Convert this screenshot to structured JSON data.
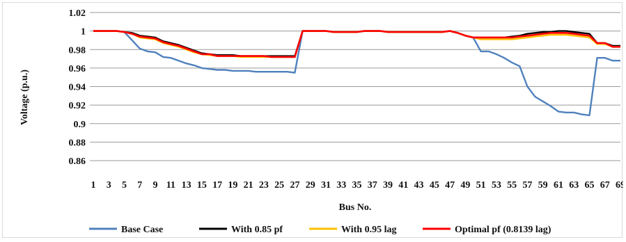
{
  "chart_data": {
    "type": "line",
    "title": "",
    "xlabel": "Bus No.",
    "ylabel": "Voltage (p.u.)",
    "ylim": [
      0.86,
      1.02
    ],
    "yticks": [
      0.86,
      0.88,
      0.9,
      0.92,
      0.94,
      0.96,
      0.98,
      1,
      1.02
    ],
    "ytick_labels": [
      "0.86",
      "0.88",
      "0.9",
      "0.92",
      "0.94",
      "0.96",
      "0.98",
      "1",
      "1.02"
    ],
    "x": [
      1,
      2,
      3,
      4,
      5,
      6,
      7,
      8,
      9,
      10,
      11,
      12,
      13,
      14,
      15,
      16,
      17,
      18,
      19,
      20,
      21,
      22,
      23,
      24,
      25,
      26,
      27,
      28,
      29,
      30,
      31,
      32,
      33,
      34,
      35,
      36,
      37,
      38,
      39,
      40,
      41,
      42,
      43,
      44,
      45,
      46,
      47,
      48,
      49,
      50,
      51,
      52,
      53,
      54,
      55,
      56,
      57,
      58,
      59,
      60,
      61,
      62,
      63,
      64,
      65,
      66,
      67,
      68,
      69
    ],
    "xtick_labels": [
      "1",
      "3",
      "5",
      "7",
      "9",
      "11",
      "13",
      "15",
      "17",
      "19",
      "21",
      "23",
      "25",
      "27",
      "29",
      "31",
      "33",
      "35",
      "37",
      "39",
      "41",
      "43",
      "45",
      "47",
      "49",
      "51",
      "53",
      "55",
      "57",
      "59",
      "61",
      "63",
      "65",
      "67",
      "69"
    ],
    "grid": "horizontal",
    "legend_position": "bottom",
    "series": [
      {
        "name": "Base Case",
        "color": "#4f81bd",
        "values": [
          1,
          1,
          1,
          1,
          0.999,
          0.99,
          0.981,
          0.978,
          0.977,
          0.972,
          0.971,
          0.968,
          0.965,
          0.963,
          0.96,
          0.959,
          0.958,
          0.958,
          0.957,
          0.957,
          0.957,
          0.956,
          0.956,
          0.956,
          0.956,
          0.956,
          0.955,
          1,
          1,
          1,
          1,
          0.999,
          0.999,
          0.999,
          0.999,
          1,
          1,
          1,
          0.999,
          0.999,
          0.999,
          0.999,
          0.999,
          0.999,
          0.999,
          0.999,
          1,
          0.998,
          0.995,
          0.993,
          0.978,
          0.978,
          0.975,
          0.971,
          0.966,
          0.962,
          0.94,
          0.929,
          0.924,
          0.919,
          0.913,
          0.912,
          0.912,
          0.91,
          0.909,
          0.971,
          0.971,
          0.968,
          0.968
        ]
      },
      {
        "name": "With 0.85 pf",
        "color": "#000000",
        "values": [
          1,
          1,
          1,
          1,
          0.999,
          0.998,
          0.995,
          0.994,
          0.993,
          0.989,
          0.987,
          0.985,
          0.982,
          0.979,
          0.976,
          0.975,
          0.974,
          0.974,
          0.974,
          0.973,
          0.973,
          0.973,
          0.973,
          0.973,
          0.973,
          0.973,
          0.973,
          1,
          1,
          1,
          1,
          0.999,
          0.999,
          0.999,
          0.999,
          1,
          1,
          1,
          0.999,
          0.999,
          0.999,
          0.999,
          0.999,
          0.999,
          0.999,
          0.999,
          1,
          0.998,
          0.995,
          0.993,
          0.993,
          0.993,
          0.993,
          0.993,
          0.994,
          0.995,
          0.997,
          0.998,
          0.999,
          0.999,
          1.0,
          1.0,
          0.999,
          0.998,
          0.997,
          0.987,
          0.987,
          0.984,
          0.984
        ]
      },
      {
        "name": "With 0.95 lag",
        "color": "#ffc000",
        "values": [
          1,
          1,
          1,
          1,
          0.999,
          0.997,
          0.993,
          0.992,
          0.991,
          0.987,
          0.985,
          0.983,
          0.98,
          0.977,
          0.975,
          0.974,
          0.973,
          0.973,
          0.973,
          0.972,
          0.972,
          0.972,
          0.972,
          0.972,
          0.972,
          0.972,
          0.972,
          1,
          1,
          1,
          1,
          0.999,
          0.999,
          0.999,
          0.999,
          1,
          1,
          1,
          0.999,
          0.999,
          0.999,
          0.999,
          0.999,
          0.999,
          0.999,
          0.999,
          1,
          0.998,
          0.995,
          0.993,
          0.991,
          0.991,
          0.991,
          0.991,
          0.991,
          0.992,
          0.993,
          0.994,
          0.995,
          0.996,
          0.996,
          0.996,
          0.995,
          0.994,
          0.993,
          0.986,
          0.986,
          0.983,
          0.983
        ]
      },
      {
        "name": "Optimal pf (0.8139 lag)",
        "color": "#ff0000",
        "values": [
          1,
          1,
          1,
          1,
          0.999,
          0.997,
          0.994,
          0.993,
          0.992,
          0.988,
          0.986,
          0.984,
          0.981,
          0.978,
          0.975,
          0.975,
          0.973,
          0.973,
          0.973,
          0.973,
          0.973,
          0.973,
          0.973,
          0.972,
          0.972,
          0.972,
          0.972,
          1,
          1,
          1,
          1,
          0.999,
          0.999,
          0.999,
          0.999,
          1,
          1,
          1,
          0.999,
          0.999,
          0.999,
          0.999,
          0.999,
          0.999,
          0.999,
          0.999,
          1,
          0.998,
          0.995,
          0.993,
          0.993,
          0.993,
          0.993,
          0.993,
          0.993,
          0.994,
          0.995,
          0.996,
          0.997,
          0.998,
          0.998,
          0.998,
          0.997,
          0.996,
          0.995,
          0.987,
          0.987,
          0.983,
          0.983
        ]
      }
    ]
  }
}
